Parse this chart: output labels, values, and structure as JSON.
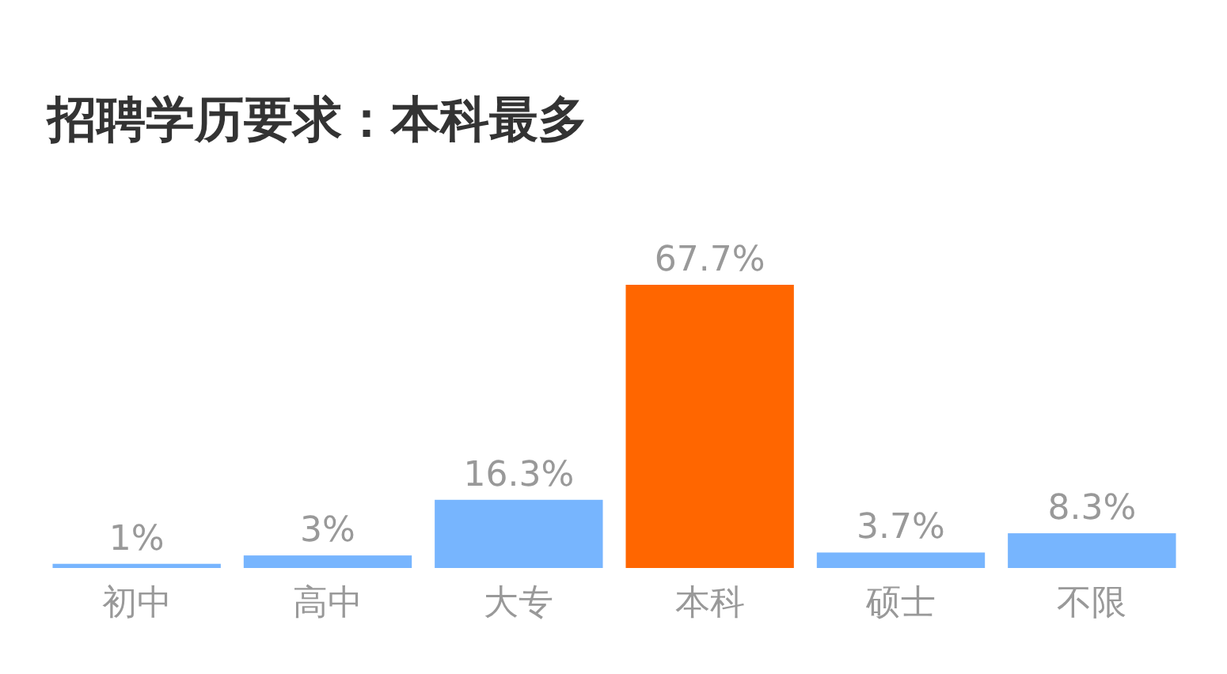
{
  "chart_data": {
    "type": "bar",
    "title": "招聘学历要求：本科最多",
    "categories": [
      "初中",
      "高中",
      "大专",
      "本科",
      "硕士",
      "不限"
    ],
    "values": [
      1,
      3,
      16.3,
      67.7,
      3.7,
      8.3
    ],
    "colors": [
      "#77b5fe",
      "#77b5fe",
      "#77b5fe",
      "#ff6600",
      "#77b5fe",
      "#77b5fe"
    ],
    "value_labels": [
      "1%",
      "3%",
      "16.3%",
      "67.7%",
      "3.7%",
      "8.3%"
    ]
  }
}
